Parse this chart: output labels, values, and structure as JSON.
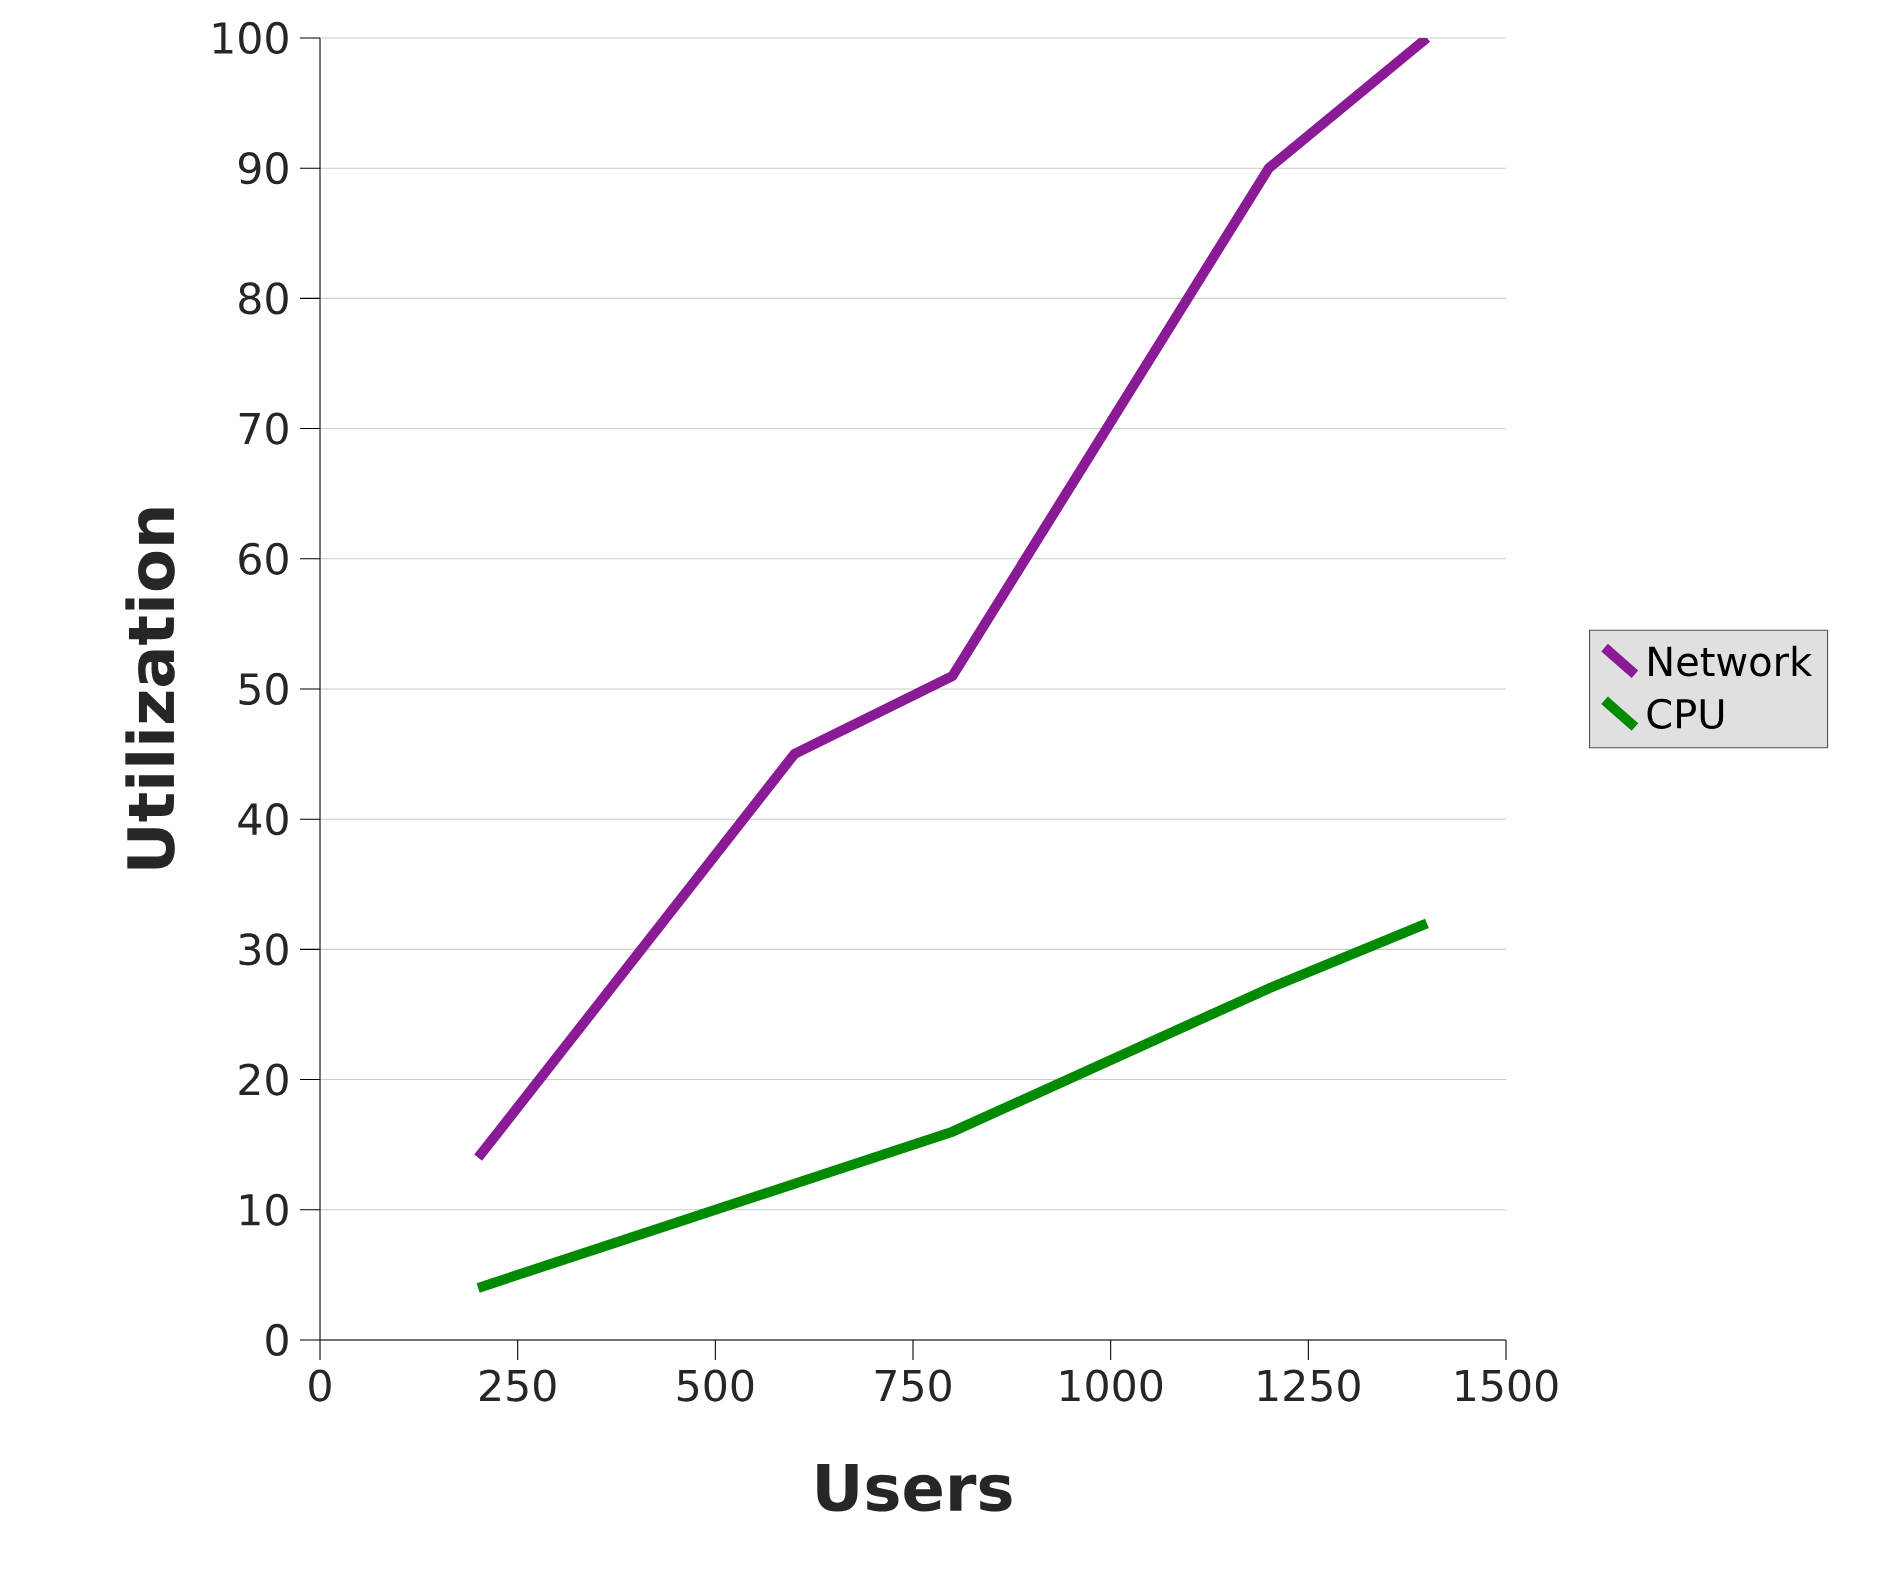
{
  "chart_data": {
    "type": "line",
    "xlabel": "Users",
    "ylabel": "Utilization",
    "series": [
      {
        "name": "Network",
        "color": "#8b1a96",
        "x": [
          200,
          600,
          800,
          1200,
          1400
        ],
        "values": [
          14,
          45,
          51,
          90,
          100
        ]
      },
      {
        "name": "CPU",
        "color": "#008a00",
        "x": [
          200,
          800,
          1200,
          1400
        ],
        "values": [
          4,
          16,
          27,
          32
        ]
      }
    ],
    "xlim": [
      0,
      1500
    ],
    "xticks": [
      0,
      250,
      500,
      750,
      1000,
      1250,
      1500
    ],
    "ylim": [
      0,
      100
    ],
    "yticks": [
      0,
      10,
      20,
      30,
      40,
      50,
      60,
      70,
      80,
      90,
      100
    ],
    "grid": "y",
    "legend": "right",
    "marker": "none",
    "line_style": "solid"
  }
}
